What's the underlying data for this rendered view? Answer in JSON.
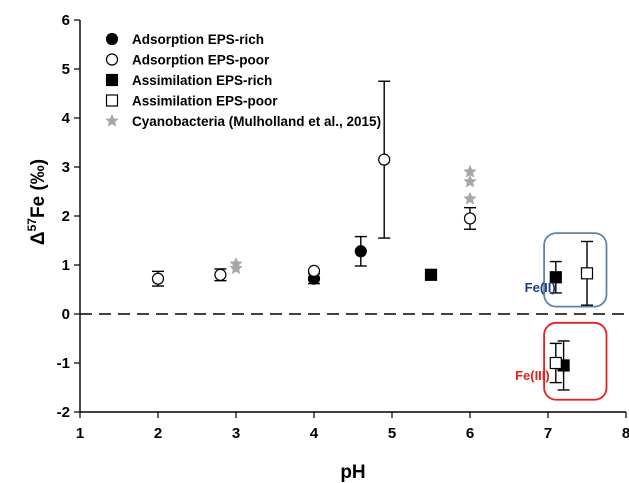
{
  "chart_data": {
    "type": "scatter",
    "title": "",
    "xlabel": "pH",
    "ylabel_main": "Δ",
    "ylabel_sup": "57",
    "ylabel_rest": "Fe (‰)",
    "xlim": [
      1,
      8
    ],
    "ylim": [
      -2,
      6
    ],
    "xticks": [
      "1",
      "2",
      "3",
      "4",
      "5",
      "6",
      "7",
      "8"
    ],
    "yticks": [
      "-2",
      "-1",
      "0",
      "1",
      "2",
      "3",
      "4",
      "5",
      "6"
    ],
    "grid": false,
    "legend_position": "top-left",
    "reference_line": {
      "y": 0,
      "style": "dashed"
    },
    "series": [
      {
        "name": "Adsorption EPS-rich",
        "marker": "filled-circle",
        "points": [
          {
            "x": 4.0,
            "y": 0.72,
            "err": 0.1
          },
          {
            "x": 4.6,
            "y": 1.28,
            "err": 0.3
          }
        ]
      },
      {
        "name": "Adsorption EPS-poor",
        "marker": "open-circle",
        "points": [
          {
            "x": 2.0,
            "y": 0.72,
            "err": 0.15
          },
          {
            "x": 2.8,
            "y": 0.8,
            "err": 0.12
          },
          {
            "x": 4.0,
            "y": 0.88,
            "err": 0.0
          },
          {
            "x": 4.9,
            "y": 3.15,
            "err": 1.6
          },
          {
            "x": 6.0,
            "y": 1.95,
            "err": 0.22
          }
        ]
      },
      {
        "name": "Assimilation EPS-rich",
        "marker": "filled-square",
        "points": [
          {
            "x": 5.5,
            "y": 0.8,
            "err": 0.08
          },
          {
            "x": 7.1,
            "y": 0.75,
            "err": 0.32
          },
          {
            "x": 7.2,
            "y": -1.05,
            "err": 0.5
          }
        ]
      },
      {
        "name": "Assimilation EPS-poor",
        "marker": "open-square",
        "points": [
          {
            "x": 7.5,
            "y": 0.83,
            "err": 0.65
          },
          {
            "x": 7.1,
            "y": -1.0,
            "err": 0.4
          }
        ]
      },
      {
        "name": "Cyanobacteria (Mulholland et al., 2015)",
        "marker": "star",
        "color": "#a6a6a6",
        "points": [
          {
            "x": 3.0,
            "y": 0.93
          },
          {
            "x": 3.0,
            "y": 1.02
          },
          {
            "x": 6.0,
            "y": 2.35
          },
          {
            "x": 6.0,
            "y": 2.7
          },
          {
            "x": 6.0,
            "y": 2.9
          }
        ]
      }
    ],
    "annotations": [
      {
        "text": "Fe(II)",
        "color": "#1f3c88",
        "x": 6.9,
        "y": 0.45
      },
      {
        "text": "Fe(III)",
        "color": "#e8201c",
        "x": 6.8,
        "y": -1.35
      }
    ],
    "highlight_boxes": [
      {
        "color": "#5b86a8",
        "x0": 6.95,
        "x1": 7.75,
        "y0": 0.15,
        "y1": 1.65
      },
      {
        "color": "#e8201c",
        "x0": 6.95,
        "x1": 7.75,
        "y0": -1.75,
        "y1": -0.18
      }
    ]
  }
}
